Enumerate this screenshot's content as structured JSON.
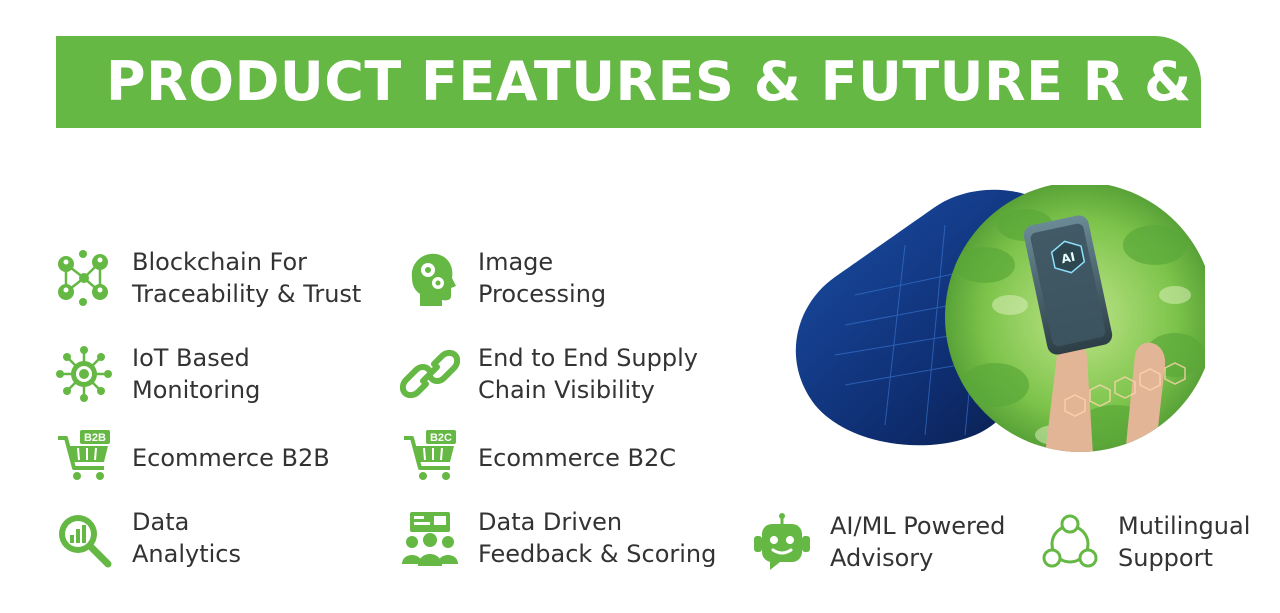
{
  "title": "PRODUCT FEATURES & FUTURE R & D",
  "colors": {
    "accent": "#64b843",
    "text": "#333333",
    "bg": "#ffffff"
  },
  "features": [
    {
      "line1": "Blockchain For",
      "line2": "Traceability & Trust",
      "icon": "blockchain-network-icon"
    },
    {
      "line1": "Image",
      "line2": "Processing",
      "icon": "head-gears-icon"
    },
    {
      "line1": "IoT Based",
      "line2": "Monitoring",
      "icon": "iot-hub-icon"
    },
    {
      "line1": "End to End Supply",
      "line2": "Chain Visibility",
      "icon": "chain-link-icon"
    },
    {
      "line1": "Ecommerce B2B",
      "line2": "",
      "icon": "cart-b2b-icon",
      "badge": "B2B"
    },
    {
      "line1": "Ecommerce B2C",
      "line2": "",
      "icon": "cart-b2c-icon",
      "badge": "B2C"
    },
    {
      "line1": "Data",
      "line2": "Analytics",
      "icon": "magnifier-chart-icon"
    },
    {
      "line1": "Data Driven",
      "line2": "Feedback & Scoring",
      "icon": "team-scoring-icon"
    },
    {
      "line1": "AI/ML Powered",
      "line2": "Advisory",
      "icon": "robot-icon"
    },
    {
      "line1": "Mutilingual",
      "line2": "Support",
      "icon": "people-circle-icon"
    }
  ],
  "image": {
    "phone_text": "AI"
  }
}
